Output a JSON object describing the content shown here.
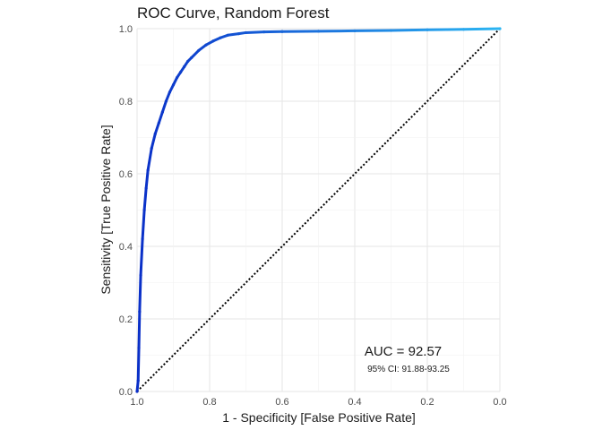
{
  "chart_data": {
    "type": "line",
    "title": "ROC Curve, Random Forest",
    "xlabel": "1 - Specificity [False Positive Rate]",
    "ylabel": "Sensitivity [True Positive Rate]",
    "x_axis": "specificity, reversed (1.0 at left, 0.0 at right)",
    "xlim": [
      1.0,
      0.0
    ],
    "ylim": [
      0.0,
      1.0
    ],
    "x_ticks": [
      "1.0",
      "0.8",
      "0.6",
      "0.4",
      "0.2",
      "0.0"
    ],
    "y_ticks": [
      "0.0",
      "0.2",
      "0.4",
      "0.6",
      "0.8",
      "1.0"
    ],
    "grid": true,
    "series": [
      {
        "color_gradient": [
          "#0a2fc8",
          "#2bb5f2"
        ],
        "specificity": [
          1.0,
          0.997,
          0.995,
          0.993,
          0.99,
          0.985,
          0.98,
          0.975,
          0.97,
          0.96,
          0.95,
          0.94,
          0.93,
          0.92,
          0.91,
          0.9,
          0.89,
          0.88,
          0.87,
          0.86,
          0.85,
          0.83,
          0.81,
          0.79,
          0.77,
          0.75,
          0.72,
          0.7,
          0.65,
          0.6,
          0.5,
          0.4,
          0.3,
          0.2,
          0.1,
          0.0
        ],
        "sensitivity": [
          0.0,
          0.03,
          0.12,
          0.22,
          0.32,
          0.42,
          0.5,
          0.56,
          0.61,
          0.67,
          0.71,
          0.74,
          0.77,
          0.8,
          0.825,
          0.845,
          0.865,
          0.88,
          0.895,
          0.91,
          0.92,
          0.94,
          0.955,
          0.966,
          0.975,
          0.982,
          0.986,
          0.989,
          0.991,
          0.992,
          0.993,
          0.994,
          0.995,
          0.997,
          0.998,
          1.0
        ]
      }
    ],
    "reference_line": {
      "style": "dotted",
      "color": "#000000",
      "from": [
        1.0,
        0.0
      ],
      "to": [
        0.0,
        1.0
      ]
    },
    "annotations": {
      "auc": "AUC = 92.57",
      "ci": "95% CI: 91.88-93.25"
    }
  }
}
